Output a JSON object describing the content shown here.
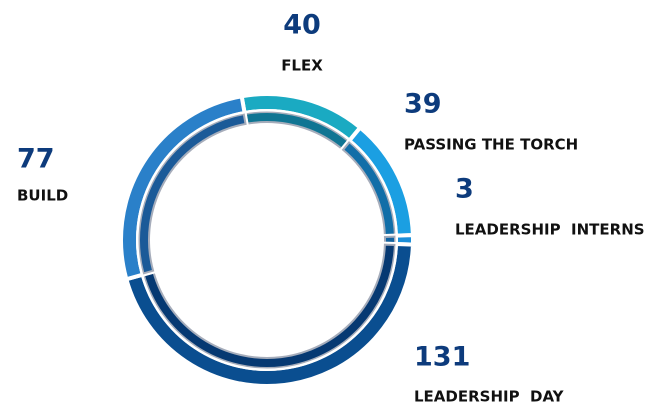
{
  "chart_data": {
    "type": "donut",
    "categories": [
      "FLEX",
      "PASSING THE TORCH",
      "LEADERSHIP  INTERNS",
      "LEADERSHIP  DAY",
      "BUILD"
    ],
    "values": [
      40,
      39,
      3,
      131,
      77
    ],
    "colors": [
      "#1aaac2",
      "#1b9fe2",
      "#1b8ed8",
      "#0a4e90",
      "#2a80c9"
    ]
  }
}
